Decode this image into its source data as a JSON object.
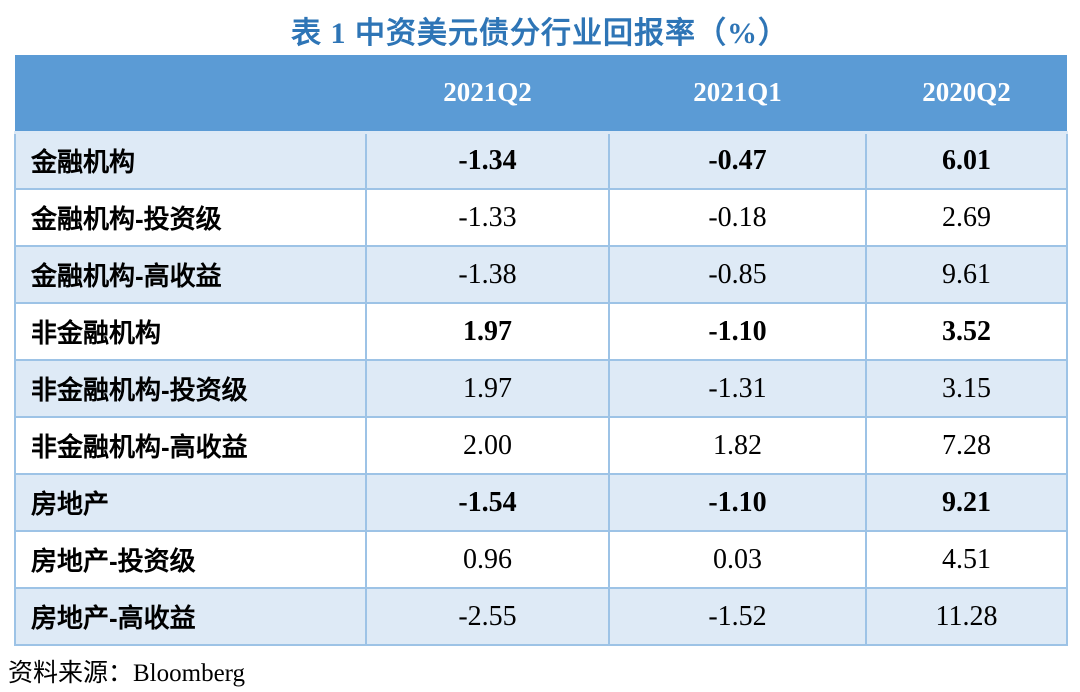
{
  "title": "表 1  中资美元债分行业回报率（%）",
  "source_note": "资料来源：Bloomberg",
  "colors": {
    "title_text": "#2E75B6",
    "header_bg": "#5B9BD5",
    "header_text": "#FFFFFF",
    "row_alt_bg": "#DEEAF6",
    "row_bg": "#FFFFFF",
    "border": "#9DC3E6",
    "body_text": "#000000"
  },
  "chart_data": {
    "type": "table",
    "title": "表 1 中资美元债分行业回报率（%）",
    "columns": [
      "",
      "2021Q2",
      "2021Q1",
      "2020Q2"
    ],
    "rows": [
      {
        "label": "金融机构",
        "values": [
          "-1.34",
          "-0.47",
          "6.01"
        ],
        "bold": true
      },
      {
        "label": "金融机构-投资级",
        "values": [
          "-1.33",
          "-0.18",
          "2.69"
        ],
        "bold": false
      },
      {
        "label": "金融机构-高收益",
        "values": [
          "-1.38",
          "-0.85",
          "9.61"
        ],
        "bold": false
      },
      {
        "label": "非金融机构",
        "values": [
          "1.97",
          "-1.10",
          "3.52"
        ],
        "bold": true
      },
      {
        "label": "非金融机构-投资级",
        "values": [
          "1.97",
          "-1.31",
          "3.15"
        ],
        "bold": false
      },
      {
        "label": "非金融机构-高收益",
        "values": [
          "2.00",
          "1.82",
          "7.28"
        ],
        "bold": false
      },
      {
        "label": "房地产",
        "values": [
          "-1.54",
          "-1.10",
          "9.21"
        ],
        "bold": true
      },
      {
        "label": "房地产-投资级",
        "values": [
          "0.96",
          "0.03",
          "4.51"
        ],
        "bold": false
      },
      {
        "label": "房地产-高收益",
        "values": [
          "-2.55",
          "-1.52",
          "11.28"
        ],
        "bold": false
      }
    ],
    "source": "Bloomberg"
  }
}
